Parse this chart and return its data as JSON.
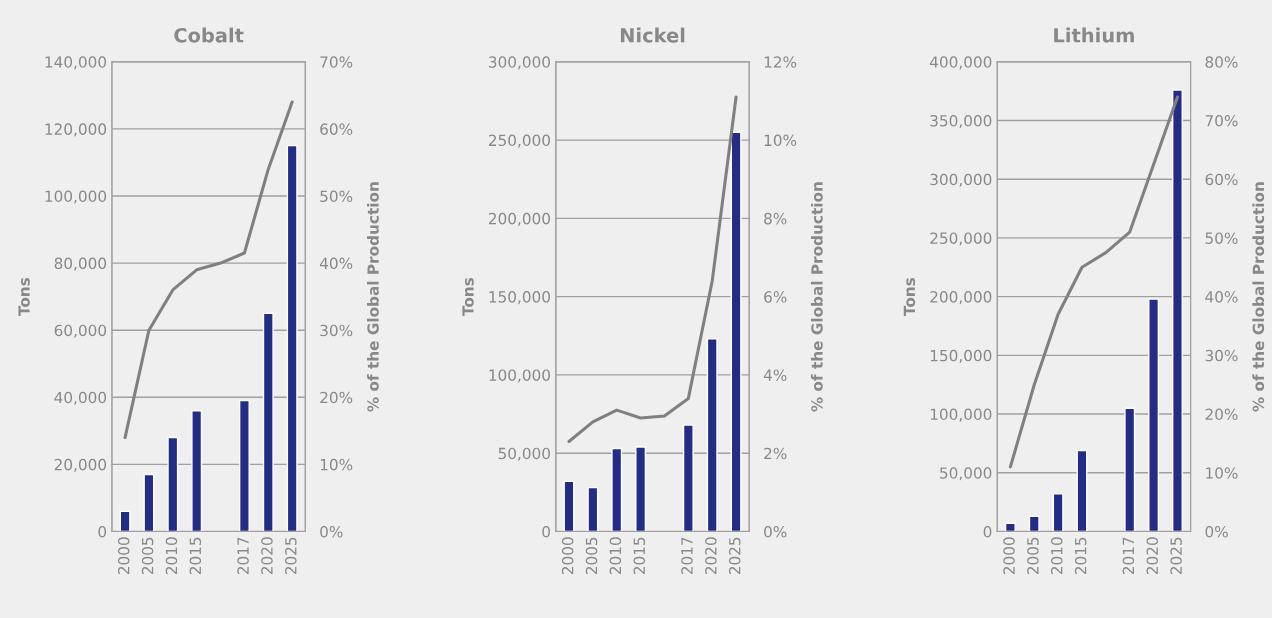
{
  "chart_data": [
    {
      "type": "bar",
      "title": "Cobalt",
      "ylabel": "Tons",
      "y2label": "% of the Global Production",
      "categories": [
        "2000",
        "2005",
        "2010",
        "2015",
        null,
        "2017",
        "2020",
        "2025"
      ],
      "series": [
        {
          "color": "#232d85",
          "values": [
            6000,
            17000,
            28000,
            36000,
            null,
            39000,
            65000,
            115000
          ]
        },
        {
          "type": "line",
          "axis": "y2",
          "color": "#808080",
          "values": [
            14,
            30,
            36,
            39,
            40,
            41.5,
            54,
            64
          ]
        }
      ],
      "ylim": [
        0,
        140000
      ],
      "yticks": [
        0,
        {
          "value": 20000,
          "label": "20,000"
        },
        {
          "value": 40000,
          "label": "40,000"
        },
        {
          "value": 60000,
          "label": "60,000"
        },
        {
          "value": 80000,
          "label": "80,000"
        },
        {
          "value": 100000,
          "label": "100,000"
        },
        {
          "value": 120000,
          "label": "120,000"
        },
        {
          "value": 140000,
          "label": "140,000"
        }
      ],
      "y2lim": [
        0,
        70
      ],
      "y2ticks": [
        {
          "value": 0,
          "label": "0%"
        },
        {
          "value": 10,
          "label": "10%"
        },
        {
          "value": 20,
          "label": "20%"
        },
        {
          "value": 30,
          "label": "30%"
        },
        {
          "value": 40,
          "label": "40%"
        },
        {
          "value": 50,
          "label": "50%"
        },
        {
          "value": 60,
          "label": "60%"
        },
        {
          "value": 70,
          "label": "70%"
        }
      ],
      "grid": "y",
      "legend": false
    },
    {
      "type": "bar",
      "title": "Nickel",
      "ylabel": "Tons",
      "y2label": "% of the Global Production",
      "categories": [
        "2000",
        "2005",
        "2010",
        "2015",
        null,
        "2017",
        "2020",
        "2025"
      ],
      "series": [
        {
          "color": "#232d85",
          "values": [
            32000,
            28000,
            53000,
            54000,
            null,
            68000,
            123000,
            255000
          ]
        },
        {
          "type": "line",
          "axis": "y2",
          "color": "#808080",
          "values": [
            2.3,
            2.8,
            3.1,
            2.9,
            2.95,
            3.4,
            6.4,
            11.1
          ]
        }
      ],
      "ylim": [
        0,
        300000
      ],
      "yticks": [
        0,
        {
          "value": 50000,
          "label": "50,000"
        },
        {
          "value": 100000,
          "label": "100,000"
        },
        {
          "value": 150000,
          "label": "150,000"
        },
        {
          "value": 200000,
          "label": "200,000"
        },
        {
          "value": 250000,
          "label": "250,000"
        },
        {
          "value": 300000,
          "label": "300,000"
        }
      ],
      "y2lim": [
        0,
        12
      ],
      "y2ticks": [
        {
          "value": 0,
          "label": "0%"
        },
        {
          "value": 2,
          "label": "2%"
        },
        {
          "value": 4,
          "label": "4%"
        },
        {
          "value": 6,
          "label": "6%"
        },
        {
          "value": 8,
          "label": "8%"
        },
        {
          "value": 10,
          "label": "10%"
        },
        {
          "value": 12,
          "label": "12%"
        }
      ],
      "grid": "y",
      "legend": false
    },
    {
      "type": "bar",
      "title": "Lithium",
      "ylabel": "Tons",
      "y2label": "% of the Global Production",
      "categories": [
        "2000",
        "2005",
        "2010",
        "2015",
        null,
        "2017",
        "2020",
        "2025"
      ],
      "series": [
        {
          "color": "#232d85",
          "values": [
            7000,
            13000,
            32000,
            69000,
            null,
            105000,
            198000,
            376000
          ]
        },
        {
          "type": "line",
          "axis": "y2",
          "color": "#808080",
          "values": [
            11,
            25,
            37,
            45,
            47.5,
            51,
            62.5,
            74
          ]
        }
      ],
      "ylim": [
        0,
        400000
      ],
      "yticks": [
        0,
        {
          "value": 50000,
          "label": "50,000"
        },
        {
          "value": 100000,
          "label": "100,000"
        },
        {
          "value": 150000,
          "label": "150,000"
        },
        {
          "value": 200000,
          "label": "200,000"
        },
        {
          "value": 250000,
          "label": "250,000"
        },
        {
          "value": 300000,
          "label": "300,000"
        },
        {
          "value": 350000,
          "label": "350,000"
        },
        {
          "value": 400000,
          "label": "400,000"
        }
      ],
      "y2lim": [
        0,
        80
      ],
      "y2ticks": [
        {
          "value": 0,
          "label": "0%"
        },
        {
          "value": 10,
          "label": "10%"
        },
        {
          "value": 20,
          "label": "20%"
        },
        {
          "value": 30,
          "label": "30%"
        },
        {
          "value": 40,
          "label": "40%"
        },
        {
          "value": 50,
          "label": "50%"
        },
        {
          "value": 60,
          "label": "60%"
        },
        {
          "value": 70,
          "label": "70%"
        },
        {
          "value": 80,
          "label": "80%"
        }
      ],
      "grid": "y",
      "legend": false
    }
  ]
}
